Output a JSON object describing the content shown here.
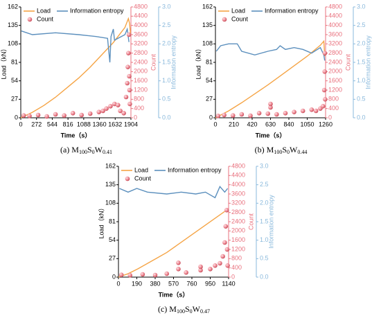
{
  "chart_data": [
    {
      "type": "line",
      "caption": [
        "(a) M",
        "100",
        "S",
        "0",
        "W",
        "0.41"
      ],
      "xlabel": "Time（s）",
      "ylabel": "Load（kN）",
      "y2label": "Count",
      "y3label": "Information entropy",
      "xlim": [
        0,
        1904
      ],
      "xticks": [
        0,
        272,
        544,
        816,
        1088,
        1360,
        1632,
        1904
      ],
      "ylim": [
        0,
        162
      ],
      "yticks": [
        0,
        27,
        54,
        81,
        108,
        135,
        162
      ],
      "y2lim": [
        0,
        4800
      ],
      "y2ticks": [
        0,
        400,
        800,
        1200,
        1600,
        2000,
        2400,
        2800,
        3200,
        3600,
        4000,
        4400,
        4800
      ],
      "y3lim": [
        0,
        3
      ],
      "y3ticks": [
        {
          "value": 0,
          "label": "0.0"
        },
        {
          "value": 0.5,
          "label": "0.5"
        },
        {
          "value": 1,
          "label": "1.0"
        },
        {
          "value": 1.5,
          "label": "1.5"
        },
        {
          "value": 2,
          "label": "2.0"
        },
        {
          "value": 2.5,
          "label": "2.5"
        },
        {
          "value": 3,
          "label": "3.0"
        }
      ],
      "series": [
        {
          "name": "Load",
          "color": "#f5a445",
          "x": [
            0,
            200,
            400,
            600,
            800,
            1000,
            1200,
            1400,
            1600,
            1800,
            1860,
            1880,
            1900
          ],
          "values": [
            0,
            8,
            18,
            30,
            44,
            58,
            74,
            92,
            110,
            132,
            145,
            138,
            120
          ]
        },
        {
          "name": "Information entropy",
          "color": "#5b8fbd",
          "axis": "y3",
          "x": [
            10,
            200,
            600,
            1000,
            1300,
            1500,
            1540,
            1560,
            1600,
            1620,
            1800,
            1840,
            1870
          ],
          "values": [
            2.35,
            2.25,
            2.3,
            2.25,
            2.2,
            2.15,
            1.5,
            2.2,
            2.4,
            2.1,
            2.25,
            2.4,
            2.05
          ]
        },
        {
          "name": "Count",
          "color": "#e9707d",
          "axis": "y2",
          "kind": "scatter",
          "x": [
            50,
            150,
            300,
            450,
            600,
            750,
            900,
            1050,
            1200,
            1350,
            1420,
            1480,
            1550,
            1620,
            1680,
            1720,
            1780,
            1820,
            1840,
            1850,
            1860,
            1870,
            1875,
            1880,
            1885
          ],
          "values": [
            100,
            80,
            120,
            60,
            150,
            100,
            200,
            120,
            180,
            250,
            300,
            400,
            500,
            600,
            550,
            300,
            200,
            900,
            1500,
            2200,
            2800,
            3600,
            1800,
            1200,
            600
          ]
        }
      ]
    },
    {
      "type": "line",
      "caption": [
        "(b) M",
        "100",
        "S",
        "0",
        "W",
        "0.44"
      ],
      "xlabel": "Time（s）",
      "ylabel": "Load（kN）",
      "y2label": "Count",
      "y3label": "Information entropy",
      "xlim": [
        0,
        1260
      ],
      "xticks": [
        0,
        210,
        420,
        630,
        840,
        1050,
        1260
      ],
      "ylim": [
        0,
        162
      ],
      "yticks": [
        0,
        27,
        54,
        81,
        108,
        135,
        162
      ],
      "y2lim": [
        0,
        4800
      ],
      "y2ticks": [
        0,
        400,
        800,
        1200,
        1600,
        2000,
        2400,
        2800,
        3200,
        3600,
        4000,
        4400,
        4800
      ],
      "y3lim": [
        0,
        3
      ],
      "y3ticks": [
        {
          "value": 0,
          "label": "0.0"
        },
        {
          "value": 0.5,
          "label": "0.5"
        },
        {
          "value": 1,
          "label": "1.0"
        },
        {
          "value": 1.5,
          "label": "1.5"
        },
        {
          "value": 2,
          "label": "2.0"
        },
        {
          "value": 2.5,
          "label": "2.5"
        },
        {
          "value": 3,
          "label": "3.0"
        }
      ],
      "series": [
        {
          "name": "Load",
          "color": "#f5a445",
          "x": [
            0,
            150,
            300,
            450,
            600,
            750,
            900,
            1050,
            1200,
            1240,
            1250
          ],
          "values": [
            0,
            10,
            22,
            35,
            48,
            62,
            76,
            90,
            106,
            112,
            90
          ]
        },
        {
          "name": "Information entropy",
          "color": "#5b8fbd",
          "axis": "y3",
          "x": [
            10,
            60,
            150,
            250,
            300,
            450,
            600,
            700,
            740,
            800,
            900,
            1000,
            1100,
            1200,
            1240,
            1250
          ],
          "values": [
            1.8,
            1.95,
            2.0,
            2.0,
            1.8,
            1.7,
            1.8,
            1.85,
            1.95,
            1.85,
            1.9,
            1.85,
            1.75,
            1.9,
            1.7,
            1.55
          ]
        },
        {
          "name": "Count",
          "color": "#e9707d",
          "axis": "y2",
          "kind": "scatter",
          "x": [
            30,
            100,
            200,
            300,
            400,
            500,
            600,
            630,
            630,
            700,
            800,
            900,
            1000,
            1100,
            1150,
            1200,
            1230,
            1245,
            1250,
            1252,
            1255
          ],
          "values": [
            80,
            120,
            100,
            150,
            90,
            200,
            180,
            450,
            600,
            150,
            200,
            250,
            300,
            350,
            300,
            400,
            500,
            1200,
            2000,
            2800,
            800
          ]
        }
      ]
    },
    {
      "type": "line",
      "caption": [
        "(c) M",
        "100",
        "S",
        "0",
        "W",
        "0.47"
      ],
      "xlabel": "Time（s）",
      "ylabel": "Load（kN）",
      "y2label": "Count",
      "y3label": "Information entropy",
      "xlim": [
        0,
        1140
      ],
      "xticks": [
        0,
        190,
        380,
        570,
        760,
        950,
        1140
      ],
      "ylim": [
        0,
        162
      ],
      "yticks": [
        0,
        27,
        54,
        81,
        108,
        135,
        162
      ],
      "y2lim": [
        0,
        4800
      ],
      "y2ticks": [
        0,
        400,
        800,
        1200,
        1600,
        2000,
        2400,
        2800,
        3200,
        3600,
        4000,
        4400,
        4800
      ],
      "y3lim": [
        0,
        3
      ],
      "y3ticks": [
        {
          "value": 0,
          "label": "0.0"
        },
        {
          "value": 0.5,
          "label": "0.5"
        },
        {
          "value": 1,
          "label": "1.0"
        },
        {
          "value": 1.5,
          "label": "1.5"
        },
        {
          "value": 2,
          "label": "2.0"
        },
        {
          "value": 2.5,
          "label": "2.5"
        },
        {
          "value": 3,
          "label": "3.0"
        }
      ],
      "series": [
        {
          "name": "Load",
          "color": "#f5a445",
          "x": [
            0,
            100,
            200,
            300,
            400,
            500,
            600,
            700,
            800,
            900,
            1000,
            1100
          ],
          "values": [
            0,
            5,
            12,
            20,
            28,
            36,
            46,
            56,
            66,
            76,
            86,
            96
          ]
        },
        {
          "name": "Information entropy",
          "color": "#5b8fbd",
          "axis": "y3",
          "x": [
            10,
            100,
            190,
            300,
            500,
            650,
            800,
            900,
            1000,
            1050,
            1100,
            1130
          ],
          "values": [
            2.4,
            2.3,
            2.4,
            2.3,
            2.25,
            2.3,
            2.25,
            2.3,
            2.15,
            2.45,
            2.3,
            2.4
          ]
        },
        {
          "name": "Count",
          "color": "#e9707d",
          "axis": "y2",
          "kind": "scatter",
          "x": [
            30,
            120,
            250,
            380,
            500,
            620,
            620,
            700,
            850,
            850,
            950,
            1000,
            1050,
            1080,
            1100,
            1110,
            1120,
            1125,
            1130
          ],
          "values": [
            100,
            80,
            120,
            90,
            150,
            350,
            620,
            200,
            300,
            450,
            350,
            500,
            600,
            900,
            1500,
            2200,
            2900,
            1200,
            500
          ]
        }
      ]
    }
  ]
}
